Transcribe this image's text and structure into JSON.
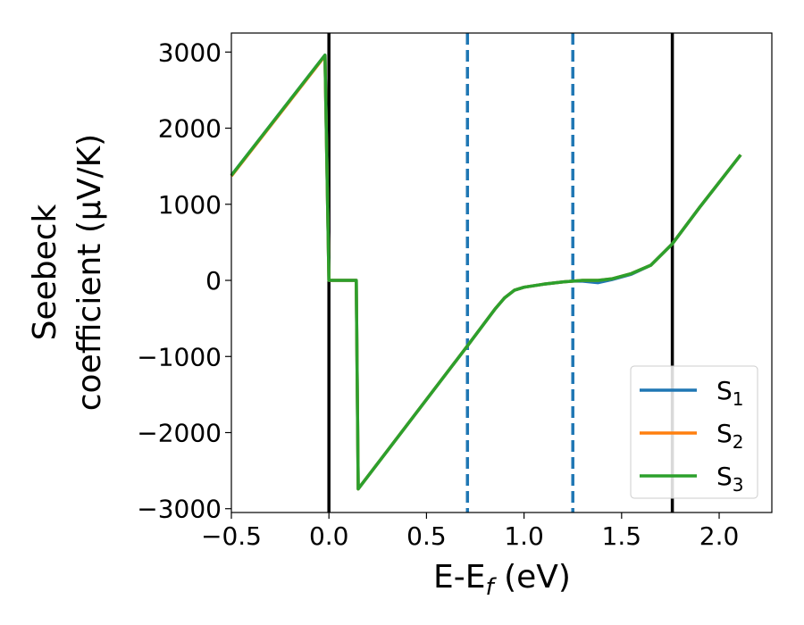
{
  "chart_data": {
    "type": "line",
    "title": "",
    "xlabel": "E-E",
    "xlabel_sub": "f",
    "xlabel_unit": "(eV)",
    "ylabel_line1": "Seebeck",
    "ylabel_line2": "coefficient",
    "ylabel_unit": "(μV/K)",
    "xlim": [
      -0.5,
      2.27
    ],
    "ylim": [
      -3050,
      3250
    ],
    "xticks": [
      -0.5,
      0.0,
      0.5,
      1.0,
      1.5,
      2.0
    ],
    "xtick_labels": [
      "−0.5",
      "0.0",
      "0.5",
      "1.0",
      "1.5",
      "2.0"
    ],
    "yticks": [
      -3000,
      -2000,
      -1000,
      0,
      1000,
      2000,
      3000
    ],
    "ytick_labels": [
      "−3000",
      "−2000",
      "−1000",
      "0",
      "1000",
      "2000",
      "3000"
    ],
    "grid": false,
    "legend_position": "lower-right",
    "vlines_solid": [
      0.0,
      1.76
    ],
    "vlines_dashed": [
      0.71,
      1.25
    ],
    "vline_solid_color": "#000000",
    "vline_dashed_color": "#1f77b4",
    "series": [
      {
        "name": "S",
        "subscript": "1",
        "color": "#1f77b4",
        "x": [
          -0.5,
          -0.02,
          0.0,
          0.14,
          0.15,
          0.71,
          0.85,
          0.9,
          0.95,
          1.0,
          1.1,
          1.2,
          1.25,
          1.3,
          1.38,
          1.45,
          1.55,
          1.65,
          1.76,
          1.9,
          2.11
        ],
        "y": [
          1380,
          2960,
          0,
          0,
          -2740,
          -860,
          -380,
          -230,
          -130,
          -90,
          -50,
          -20,
          -10,
          -10,
          -30,
          10,
          80,
          200,
          480,
          960,
          1650
        ]
      },
      {
        "name": "S",
        "subscript": "2",
        "color": "#ff7f0e",
        "x": [
          -0.5,
          -0.02,
          0.0,
          0.14,
          0.15,
          0.71,
          0.85,
          0.9,
          0.95,
          1.0,
          1.1,
          1.2,
          1.25,
          1.3,
          1.38,
          1.45,
          1.55,
          1.65,
          1.76,
          1.9,
          2.11
        ],
        "y": [
          1370,
          2950,
          0,
          0,
          -2740,
          -860,
          -380,
          -230,
          -130,
          -90,
          -50,
          -20,
          -10,
          0,
          0,
          20,
          90,
          200,
          480,
          960,
          1650
        ]
      },
      {
        "name": "S",
        "subscript": "3",
        "color": "#2ca02c",
        "x": [
          -0.5,
          -0.02,
          0.0,
          0.14,
          0.15,
          0.71,
          0.85,
          0.9,
          0.95,
          1.0,
          1.1,
          1.2,
          1.25,
          1.3,
          1.38,
          1.45,
          1.55,
          1.65,
          1.76,
          1.9,
          2.11
        ],
        "y": [
          1380,
          2960,
          0,
          0,
          -2740,
          -860,
          -380,
          -230,
          -130,
          -90,
          -50,
          -20,
          -10,
          0,
          0,
          20,
          90,
          200,
          480,
          960,
          1650
        ]
      }
    ]
  }
}
